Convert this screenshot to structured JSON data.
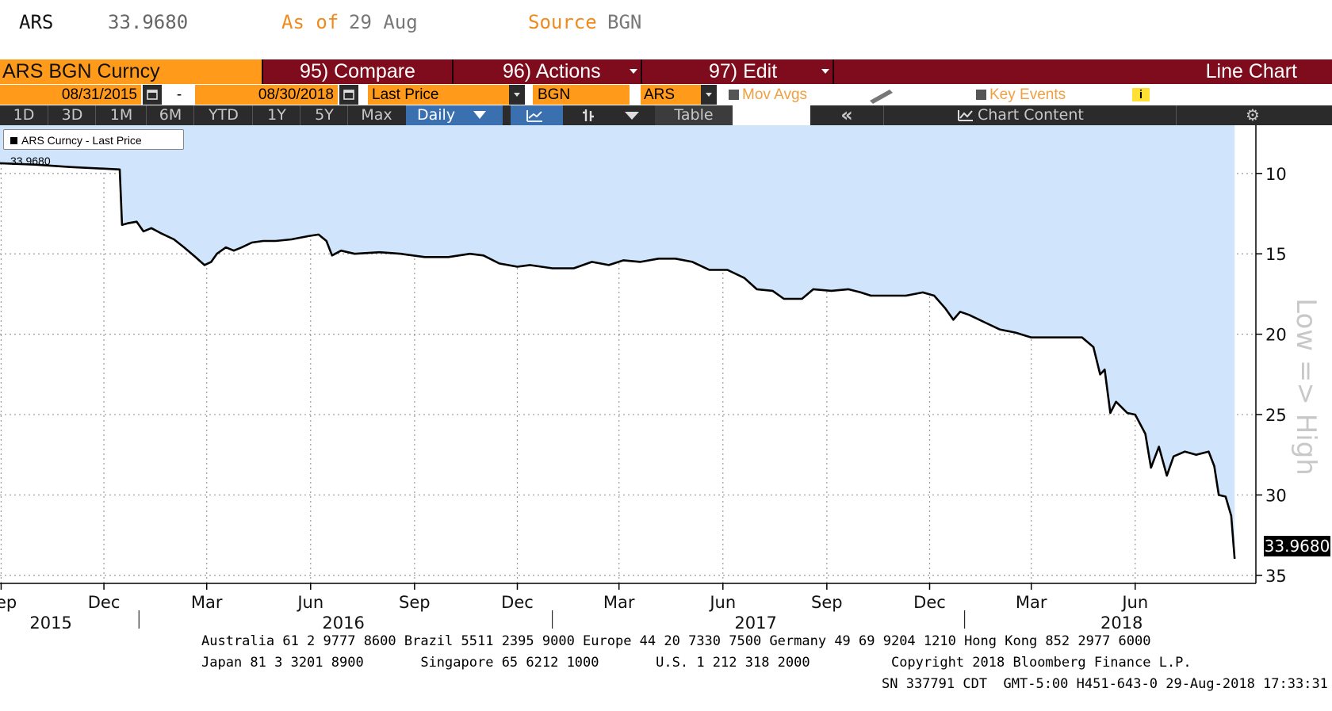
{
  "header": {
    "ticker": "ARS",
    "price": "33.9680",
    "as_of_label": "As of",
    "as_of_date": "29 Aug",
    "source_label": "Source",
    "source_value": "BGN"
  },
  "toolbar": {
    "security": "ARS BGN Curncy",
    "compare": "95) Compare",
    "actions": "96) Actions",
    "edit": "97) Edit",
    "chart_type": "Line Chart"
  },
  "params": {
    "start_date": "08/31/2015",
    "dash": "-",
    "end_date": "08/30/2018",
    "field": "Last Price",
    "source": "BGN",
    "currency": "ARS",
    "mov_avgs": "Mov Avgs",
    "key_events": "Key Events",
    "info_icon": "i"
  },
  "ranges": {
    "items": [
      "1D",
      "3D",
      "1M",
      "6M",
      "YTD",
      "1Y",
      "5Y",
      "Max"
    ],
    "frequency": "Daily",
    "table": "Table",
    "collapse": "«",
    "chart_content": "Chart Content"
  },
  "colors": {
    "orange": "#ff9a1a",
    "maroon": "#7f0c1c",
    "fill": "#d0e5fb",
    "line": "#000000",
    "axis_title": "#c8c8c8"
  },
  "chart_data": {
    "type": "line",
    "legend": "ARS Curncy - Last Price 33.9680",
    "last_value_label": "33.9680",
    "axis_title": "Low => High",
    "y_inverted": true,
    "ylim": [
      7,
      35.5
    ],
    "yticks": [
      "10",
      "15",
      "20",
      "25",
      "30",
      "35"
    ],
    "x_month_ticks": [
      "Sep",
      "Dec",
      "Mar",
      "Jun",
      "Sep",
      "Dec",
      "Mar",
      "Jun",
      "Sep",
      "Dec",
      "Mar",
      "Jun"
    ],
    "x_year_labels": [
      "2015",
      "2016",
      "2017",
      "2018"
    ],
    "series": [
      {
        "values": [
          [
            "2015-08-31",
            9.36
          ],
          [
            "2015-10-01",
            9.45
          ],
          [
            "2015-11-01",
            9.6
          ],
          [
            "2015-12-15",
            9.75
          ],
          [
            "2015-12-17",
            13.2
          ],
          [
            "2015-12-22",
            13.1
          ],
          [
            "2015-12-30",
            13.0
          ],
          [
            "2016-01-05",
            13.6
          ],
          [
            "2016-01-12",
            13.4
          ],
          [
            "2016-01-20",
            13.7
          ],
          [
            "2016-02-01",
            14.1
          ],
          [
            "2016-02-10",
            14.6
          ],
          [
            "2016-02-20",
            15.2
          ],
          [
            "2016-02-28",
            15.7
          ],
          [
            "2016-03-05",
            15.5
          ],
          [
            "2016-03-10",
            15.0
          ],
          [
            "2016-03-18",
            14.6
          ],
          [
            "2016-03-25",
            14.8
          ],
          [
            "2016-04-01",
            14.6
          ],
          [
            "2016-04-10",
            14.3
          ],
          [
            "2016-04-20",
            14.2
          ],
          [
            "2016-05-01",
            14.2
          ],
          [
            "2016-05-15",
            14.1
          ],
          [
            "2016-05-30",
            13.9
          ],
          [
            "2016-06-08",
            13.8
          ],
          [
            "2016-06-15",
            14.2
          ],
          [
            "2016-06-20",
            15.1
          ],
          [
            "2016-06-28",
            14.8
          ],
          [
            "2016-07-10",
            15.0
          ],
          [
            "2016-08-01",
            14.9
          ],
          [
            "2016-08-20",
            15.0
          ],
          [
            "2016-09-10",
            15.2
          ],
          [
            "2016-10-01",
            15.2
          ],
          [
            "2016-10-20",
            15.0
          ],
          [
            "2016-11-01",
            15.1
          ],
          [
            "2016-11-15",
            15.6
          ],
          [
            "2016-12-01",
            15.8
          ],
          [
            "2016-12-12",
            15.7
          ],
          [
            "2017-01-01",
            15.9
          ],
          [
            "2017-01-20",
            15.9
          ],
          [
            "2017-02-05",
            15.5
          ],
          [
            "2017-02-20",
            15.7
          ],
          [
            "2017-03-05",
            15.4
          ],
          [
            "2017-03-20",
            15.5
          ],
          [
            "2017-04-05",
            15.3
          ],
          [
            "2017-04-20",
            15.3
          ],
          [
            "2017-05-05",
            15.5
          ],
          [
            "2017-05-20",
            16.0
          ],
          [
            "2017-06-05",
            16.0
          ],
          [
            "2017-06-20",
            16.5
          ],
          [
            "2017-07-01",
            17.2
          ],
          [
            "2017-07-15",
            17.3
          ],
          [
            "2017-07-25",
            17.8
          ],
          [
            "2017-08-10",
            17.8
          ],
          [
            "2017-08-20",
            17.2
          ],
          [
            "2017-09-05",
            17.3
          ],
          [
            "2017-09-20",
            17.2
          ],
          [
            "2017-10-01",
            17.4
          ],
          [
            "2017-10-10",
            17.6
          ],
          [
            "2017-10-25",
            17.6
          ],
          [
            "2017-11-10",
            17.6
          ],
          [
            "2017-11-25",
            17.4
          ],
          [
            "2017-12-05",
            17.6
          ],
          [
            "2017-12-15",
            18.4
          ],
          [
            "2017-12-22",
            19.1
          ],
          [
            "2017-12-28",
            18.6
          ],
          [
            "2018-01-05",
            18.8
          ],
          [
            "2018-01-20",
            19.3
          ],
          [
            "2018-02-01",
            19.7
          ],
          [
            "2018-02-15",
            19.9
          ],
          [
            "2018-03-01",
            20.2
          ],
          [
            "2018-03-15",
            20.2
          ],
          [
            "2018-04-01",
            20.2
          ],
          [
            "2018-04-15",
            20.2
          ],
          [
            "2018-04-25",
            20.8
          ],
          [
            "2018-05-01",
            22.5
          ],
          [
            "2018-05-05",
            22.2
          ],
          [
            "2018-05-10",
            24.9
          ],
          [
            "2018-05-15",
            24.2
          ],
          [
            "2018-05-25",
            24.9
          ],
          [
            "2018-06-01",
            25.0
          ],
          [
            "2018-06-10",
            26.2
          ],
          [
            "2018-06-15",
            28.3
          ],
          [
            "2018-06-22",
            27.0
          ],
          [
            "2018-06-29",
            28.8
          ],
          [
            "2018-07-05",
            27.6
          ],
          [
            "2018-07-15",
            27.3
          ],
          [
            "2018-07-25",
            27.5
          ],
          [
            "2018-08-05",
            27.3
          ],
          [
            "2018-08-10",
            28.2
          ],
          [
            "2018-08-14",
            30.0
          ],
          [
            "2018-08-20",
            30.1
          ],
          [
            "2018-08-25",
            31.3
          ],
          [
            "2018-08-28",
            33.97
          ]
        ]
      }
    ]
  },
  "footer": {
    "line1": "Australia 61 2 9777 8600 Brazil 5511 2395 9000 Europe 44 20 7330 7500 Germany 49 69 9204 1210 Hong Kong 852 2977 6000",
    "line2": "Japan 81 3 3201 8900       Singapore 65 6212 1000       U.S. 1 212 318 2000          Copyright 2018 Bloomberg Finance L.P.",
    "line3": "SN 337791 CDT  GMT-5:00 H451-643-0 29-Aug-2018 17:33:31"
  }
}
